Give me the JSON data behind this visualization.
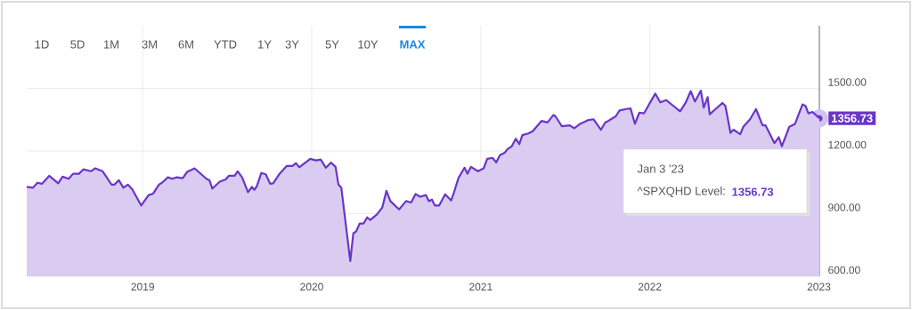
{
  "chart_data": {
    "type": "area",
    "color": "#6a35c8",
    "x": [
      2018.314,
      2018.351,
      2018.377,
      2018.404,
      2018.447,
      2018.5,
      2018.526,
      2018.562,
      2018.588,
      2018.623,
      2018.649,
      2018.693,
      2018.719,
      2018.763,
      2018.816,
      2018.833,
      2018.859,
      2018.886,
      2018.912,
      2018.938,
      2018.991,
      2019.035,
      2019.062,
      2019.096,
      2019.114,
      2019.149,
      2019.175,
      2019.202,
      2019.237,
      2019.263,
      2019.307,
      2019.377,
      2019.395,
      2019.412,
      2019.456,
      2019.491,
      2019.509,
      2019.544,
      2019.562,
      2019.588,
      2019.623,
      2019.646,
      2019.661,
      2019.675,
      2019.702,
      2019.728,
      2019.754,
      2019.772,
      2019.807,
      2019.851,
      2019.886,
      2019.907,
      2019.926,
      2019.991,
      2020.026,
      2020.053,
      2020.084,
      2020.114,
      2020.141,
      2020.158,
      2020.175,
      2020.228,
      2020.246,
      2020.263,
      2020.284,
      2020.307,
      2020.328,
      2020.346,
      2020.386,
      2020.417,
      2020.442,
      2020.465,
      2020.517,
      2020.558,
      2020.588,
      2020.614,
      2020.641,
      2020.675,
      2020.693,
      2020.711,
      2020.728,
      2020.754,
      2020.789,
      2020.825,
      2020.842,
      2020.868,
      2020.904,
      2020.921,
      2020.942,
      2020.983,
      2021.017,
      2021.038,
      2021.07,
      2021.091,
      2021.114,
      2021.141,
      2021.158,
      2021.184,
      2021.207,
      2021.228,
      2021.246,
      2021.281,
      2021.307,
      2021.359,
      2021.395,
      2021.43,
      2021.442,
      2021.479,
      2021.526,
      2021.553,
      2021.588,
      2021.632,
      2021.667,
      2021.711,
      2021.737,
      2021.754,
      2021.798,
      2021.821,
      2021.859,
      2021.886,
      2021.912,
      2021.938,
      2021.965,
      2022.032,
      2022.062,
      2022.096,
      2022.14,
      2022.179,
      2022.211,
      2022.242,
      2022.267,
      2022.302,
      2022.319,
      2022.342,
      2022.354,
      2022.389,
      2022.43,
      2022.447,
      2022.477,
      2022.495,
      2022.535,
      2022.553,
      2022.593,
      2022.628,
      2022.667,
      2022.684,
      2022.737,
      2022.763,
      2022.781,
      2022.825,
      2022.859,
      2022.903,
      2022.921,
      2022.938,
      2022.962,
      2023.003
    ],
    "values": [
      1028,
      1024,
      1048,
      1043,
      1081,
      1045,
      1077,
      1067,
      1091,
      1091,
      1112,
      1103,
      1117,
      1103,
      1039,
      1039,
      1060,
      1024,
      1039,
      1017,
      939,
      989,
      996,
      1039,
      1048,
      1074,
      1067,
      1074,
      1070,
      1100,
      1117,
      1067,
      1060,
      1020,
      1053,
      1064,
      1081,
      1081,
      1103,
      1074,
      1003,
      1028,
      1014,
      1031,
      1095,
      1088,
      1043,
      1045,
      1088,
      1128,
      1128,
      1142,
      1122,
      1162,
      1155,
      1159,
      1120,
      1145,
      1124,
      1039,
      1024,
      673,
      806,
      815,
      853,
      853,
      882,
      870,
      896,
      929,
      1009,
      960,
      920,
      960,
      953,
      994,
      981,
      989,
      960,
      967,
      939,
      939,
      993,
      963,
      1003,
      1071,
      1120,
      1091,
      1124,
      1103,
      1117,
      1162,
      1167,
      1145,
      1181,
      1191,
      1209,
      1223,
      1259,
      1233,
      1276,
      1284,
      1295,
      1344,
      1337,
      1373,
      1366,
      1319,
      1323,
      1309,
      1330,
      1347,
      1352,
      1302,
      1337,
      1344,
      1366,
      1394,
      1401,
      1404,
      1330,
      1384,
      1380,
      1475,
      1433,
      1444,
      1416,
      1390,
      1430,
      1487,
      1437,
      1489,
      1408,
      1458,
      1376,
      1401,
      1430,
      1416,
      1287,
      1302,
      1280,
      1316,
      1352,
      1401,
      1323,
      1323,
      1238,
      1266,
      1223,
      1316,
      1330,
      1423,
      1416,
      1380,
      1387,
      1356.73
    ],
    "xlim": [
      2018.314,
      2023.003
    ],
    "ylim": [
      600,
      1800
    ],
    "xticks": [
      2019,
      2020,
      2021,
      2022,
      2023
    ],
    "yticks": [
      {
        "value": 600,
        "label": "600.00"
      },
      {
        "value": 900,
        "label": "900.00"
      },
      {
        "value": 1200,
        "label": "1200.00"
      },
      {
        "value": 1500,
        "label": "1500.00"
      }
    ],
    "grid": true,
    "annotations": [
      "1D",
      "5D",
      "1M",
      "3M",
      "6M",
      "YTD",
      "1Y",
      "3Y",
      "5Y",
      "10Y",
      "MAX",
      "Jan 3 '23",
      "^SPXQHD Level:",
      "1356.73",
      {
        "text": "1356.73",
        "x": 2023.003,
        "y": 1356.73
      }
    ]
  }
}
